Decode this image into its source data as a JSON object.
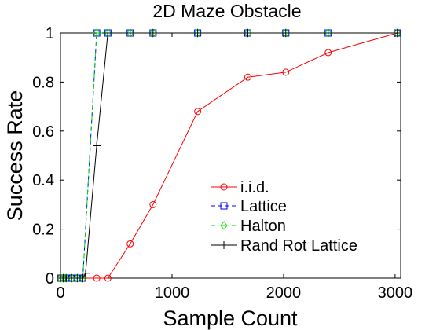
{
  "chart_data": {
    "type": "line",
    "title": "2D Maze Obstacle",
    "xlabel": "Sample Count",
    "ylabel": "Success Rate",
    "xlim": [
      0,
      3050
    ],
    "ylim": [
      0,
      1
    ],
    "xticks": [
      0,
      1000,
      2000,
      3000
    ],
    "yticks": [
      0,
      0.2,
      0.4,
      0.6,
      0.8,
      1
    ],
    "ytick_labels": [
      "0",
      "0.2",
      "0.4",
      "0.6",
      "0.8",
      "1"
    ],
    "grid": false,
    "legend_position": "lower-right",
    "series": [
      {
        "name": "i.i.d.",
        "color": "#ff0000",
        "dash": "solid",
        "marker": "circle",
        "x": [
          0,
          25,
          50,
          100,
          150,
          200,
          325,
          425,
          625,
          830,
          1230,
          1680,
          2020,
          2400,
          3020
        ],
        "y": [
          0,
          0,
          0,
          0,
          0,
          0,
          0,
          0,
          0.14,
          0.3,
          0.68,
          0.82,
          0.84,
          0.92,
          1.0
        ]
      },
      {
        "name": "Lattice",
        "color": "#0000ff",
        "dash": "dash",
        "marker": "square",
        "x": [
          0,
          25,
          50,
          100,
          150,
          200,
          325,
          425,
          625,
          830,
          1230,
          1680,
          2020,
          2400,
          3020
        ],
        "y": [
          0,
          0,
          0,
          0,
          0,
          0,
          1,
          1,
          1,
          1,
          1,
          1,
          1,
          1,
          1
        ]
      },
      {
        "name": "Halton",
        "color": "#00dd00",
        "dash": "dashdot",
        "marker": "diamond",
        "x": [
          0,
          25,
          50,
          100,
          150,
          200,
          325,
          425,
          625,
          830,
          1230,
          1680,
          2020,
          2400,
          3020
        ],
        "y": [
          0,
          0,
          0,
          0,
          0,
          0,
          1,
          1,
          1,
          1,
          1,
          1,
          1,
          1,
          1
        ]
      },
      {
        "name": "Rand Rot Lattice",
        "color": "#000000",
        "dash": "solid",
        "marker": "plus",
        "x": [
          0,
          25,
          50,
          100,
          150,
          200,
          225,
          325,
          425,
          625,
          830,
          1230,
          1680,
          2020,
          2400,
          3020
        ],
        "y": [
          0,
          0,
          0,
          0,
          0,
          0,
          0.02,
          0.54,
          1,
          1,
          1,
          1,
          1,
          1,
          1,
          1
        ]
      }
    ]
  }
}
